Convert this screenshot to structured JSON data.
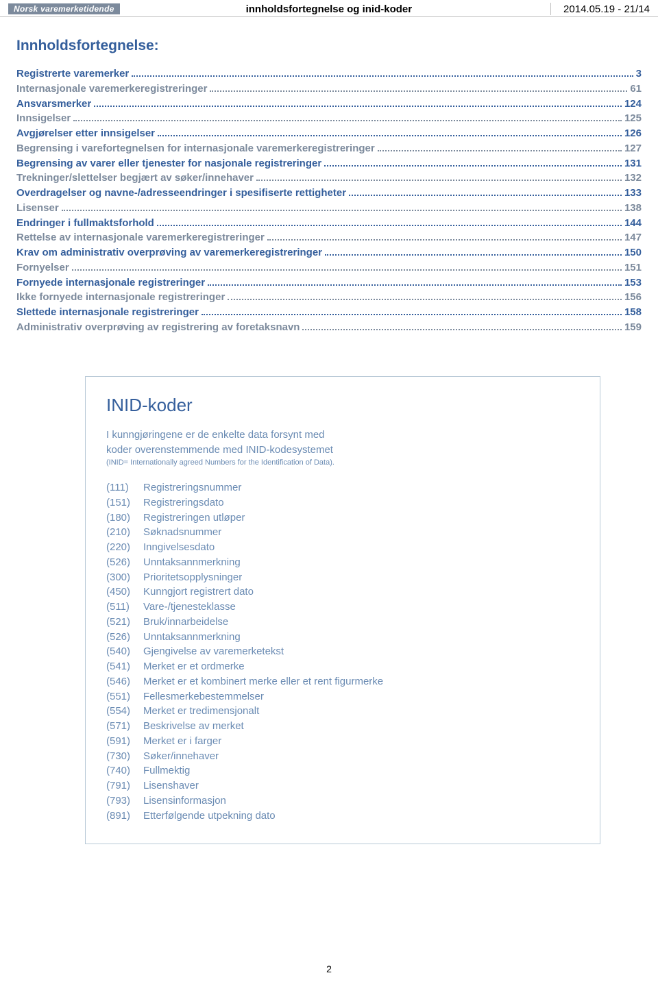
{
  "header": {
    "brand": "Norsk varemerketidende",
    "center": "innholdsfortegnelse og inid-koder",
    "right": "2014.05.19 - 21/14"
  },
  "toc": {
    "title": "Innholdsfortegnelse:",
    "link_color": "#355f9c",
    "alt_color": "#7c8a9c",
    "items": [
      {
        "label": "Registrerte varemerker",
        "page": "3",
        "color": "#355f9c"
      },
      {
        "label": "Internasjonale varemerkeregistreringer",
        "page": "61",
        "color": "#7c8a9c"
      },
      {
        "label": "Ansvarsmerker",
        "page": "124",
        "color": "#355f9c"
      },
      {
        "label": "Innsigelser",
        "page": "125",
        "color": "#7c8a9c"
      },
      {
        "label": "Avgjørelser etter innsigelser",
        "page": "126",
        "color": "#355f9c"
      },
      {
        "label": "Begrensing i varefortegnelsen for internasjonale varemerkeregistreringer",
        "page": "127",
        "color": "#7c8a9c"
      },
      {
        "label": "Begrensing av varer eller tjenester for nasjonale registreringer",
        "page": "131",
        "color": "#355f9c"
      },
      {
        "label": "Trekninger/slettelser begjært av søker/innehaver",
        "page": "132",
        "color": "#7c8a9c"
      },
      {
        "label": "Overdragelser og navne-/adresseendringer i spesifiserte rettigheter",
        "page": "133",
        "color": "#355f9c"
      },
      {
        "label": "Lisenser",
        "page": "138",
        "color": "#7c8a9c"
      },
      {
        "label": "Endringer i fullmaktsforhold",
        "page": "144",
        "color": "#355f9c"
      },
      {
        "label": "Rettelse av internasjonale varemerkeregistreringer",
        "page": "147",
        "color": "#7c8a9c"
      },
      {
        "label": "Krav om administrativ overprøving av varemerkeregistreringer",
        "page": "150",
        "color": "#355f9c"
      },
      {
        "label": "Fornyelser",
        "page": "151",
        "color": "#7c8a9c"
      },
      {
        "label": "Fornyede internasjonale registreringer",
        "page": "153",
        "color": "#355f9c"
      },
      {
        "label": "Ikke fornyede internasjonale registreringer",
        "page": "156",
        "color": "#7c8a9c"
      },
      {
        "label": "Slettede internasjonale registreringer",
        "page": "158",
        "color": "#355f9c"
      },
      {
        "label": "Administrativ overprøving av registrering av foretaksnavn",
        "page": "159",
        "color": "#7c8a9c"
      }
    ]
  },
  "info": {
    "title": "INID-koder",
    "intro1": "I kunngjøringene er de enkelte data forsynt med",
    "intro2": "koder overenstemmende med INID-kodesystemet",
    "intro_small": "(INID= Internationally agreed Numbers for the Identification of Data).",
    "codes": [
      {
        "num": "(111)",
        "desc": "Registreringsnummer"
      },
      {
        "num": "(151)",
        "desc": "Registreringsdato"
      },
      {
        "num": "(180)",
        "desc": "Registreringen utløper"
      },
      {
        "num": "(210)",
        "desc": "Søknadsnummer"
      },
      {
        "num": "(220)",
        "desc": "Inngivelsesdato"
      },
      {
        "num": "(526)",
        "desc": "Unntaksannmerkning"
      },
      {
        "num": "(300)",
        "desc": "Prioritetsopplysninger"
      },
      {
        "num": "(450)",
        "desc": "Kunngjort registrert dato"
      },
      {
        "num": "(511)",
        "desc": "Vare-/tjenesteklasse"
      },
      {
        "num": "(521)",
        "desc": "Bruk/innarbeidelse"
      },
      {
        "num": "(526)",
        "desc": "Unntaksannmerkning"
      },
      {
        "num": "(540)",
        "desc": "Gjengivelse av varemerketekst"
      },
      {
        "num": "(541)",
        "desc": "Merket er et ordmerke"
      },
      {
        "num": "(546)",
        "desc": "Merket er et kombinert merke eller et rent figurmerke"
      },
      {
        "num": "(551)",
        "desc": "Fellesmerkebestemmelser"
      },
      {
        "num": "(554)",
        "desc": "Merket er tredimensjonalt"
      },
      {
        "num": "(571)",
        "desc": "Beskrivelse av merket"
      },
      {
        "num": "(591)",
        "desc": "Merket er i farger"
      },
      {
        "num": "(730)",
        "desc": "Søker/innehaver"
      },
      {
        "num": "(740)",
        "desc": "Fullmektig"
      },
      {
        "num": "(791)",
        "desc": "Lisenshaver"
      },
      {
        "num": "(793)",
        "desc": "Lisensinformasjon"
      },
      {
        "num": "(891)",
        "desc": "Etterfølgende utpekning dato"
      }
    ]
  },
  "page_number": "2"
}
